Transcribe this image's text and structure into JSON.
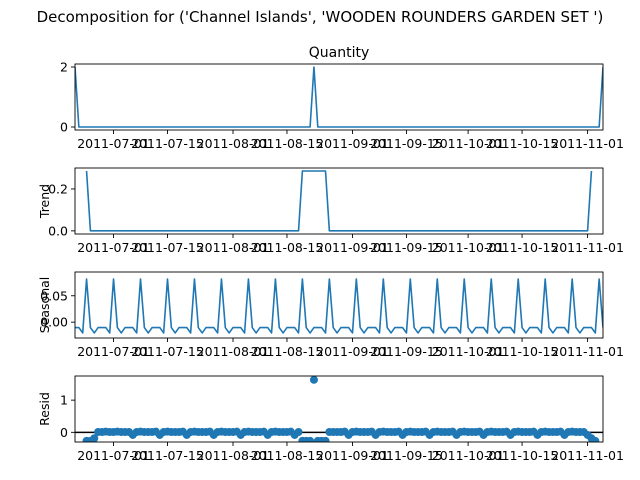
{
  "figure": {
    "suptitle": "Decomposition for ('Channel Islands', 'WOODEN ROUNDERS GARDEN SET ')"
  },
  "colors": {
    "series": "#1f77b4",
    "zero_line": "#000000",
    "axes": "#000000"
  },
  "chart_data": [
    {
      "type": "line",
      "title": "Quantity",
      "ylabel": "",
      "ylim": [
        -0.1,
        2.1
      ],
      "yticks": [
        0,
        2
      ],
      "x_range": [
        "2011-06-21",
        "2011-11-05"
      ],
      "xticks": [
        "2011-07-01",
        "2011-07-15",
        "2011-08-01",
        "2011-08-15",
        "2011-09-01",
        "2011-09-15",
        "2011-10-01",
        "2011-10-15",
        "2011-11-01"
      ],
      "points": [
        [
          "2011-06-21",
          2
        ],
        [
          "2011-06-22",
          0
        ],
        [
          "2011-08-21",
          0
        ],
        [
          "2011-08-22",
          2
        ],
        [
          "2011-08-23",
          0
        ],
        [
          "2011-11-04",
          0
        ],
        [
          "2011-11-05",
          2
        ]
      ]
    },
    {
      "type": "line",
      "title": "",
      "ylabel": "Trend",
      "ylim": [
        -0.015,
        0.3
      ],
      "yticks": [
        0.0,
        0.2
      ],
      "x_range": [
        "2011-06-21",
        "2011-11-05"
      ],
      "xticks": [
        "2011-07-01",
        "2011-07-15",
        "2011-08-01",
        "2011-08-15",
        "2011-09-01",
        "2011-09-15",
        "2011-10-01",
        "2011-10-15",
        "2011-11-01"
      ],
      "points": [
        [
          "2011-06-24",
          0.2857
        ],
        [
          "2011-06-25",
          0
        ],
        [
          "2011-08-18",
          0
        ],
        [
          "2011-08-19",
          0.2857
        ],
        [
          "2011-08-25",
          0.2857
        ],
        [
          "2011-08-26",
          0
        ],
        [
          "2011-11-01",
          0
        ],
        [
          "2011-11-02",
          0.2857
        ]
      ]
    },
    {
      "type": "line",
      "title": "",
      "ylabel": "Seasonal",
      "ylim": [
        -0.03,
        0.095
      ],
      "yticks": [
        0.0,
        0.05
      ],
      "x_range": [
        "2011-06-21",
        "2011-11-05"
      ],
      "xticks": [
        "2011-07-01",
        "2011-07-15",
        "2011-08-01",
        "2011-08-15",
        "2011-09-01",
        "2011-09-15",
        "2011-10-01",
        "2011-10-15",
        "2011-11-01"
      ],
      "pattern": {
        "start": "2011-06-21",
        "period_days": 7,
        "cycle": [
          -0.0102,
          -0.0102,
          -0.0204,
          0.0816,
          -0.0102,
          -0.0204,
          -0.0102
        ]
      }
    },
    {
      "type": "scatter",
      "title": "",
      "ylabel": "Resid",
      "ylim": [
        -0.3,
        1.75
      ],
      "yticks": [
        0,
        1
      ],
      "zero_line": 0,
      "x_range": [
        "2011-06-21",
        "2011-11-05"
      ],
      "xticks": [
        "2011-07-01",
        "2011-07-15",
        "2011-08-01",
        "2011-08-15",
        "2011-09-01",
        "2011-09-15",
        "2011-10-01",
        "2011-10-15",
        "2011-11-01"
      ],
      "points": [
        [
          "2011-06-24",
          -0.2653
        ],
        [
          "2011-06-25",
          -0.2653
        ],
        [
          "2011-06-26",
          -0.1836
        ],
        [
          "2011-06-27",
          0.0102
        ],
        [
          "2011-06-28",
          0.0102
        ],
        [
          "2011-06-29",
          0.0204
        ],
        [
          "2011-06-30",
          0.0102
        ],
        [
          "2011-07-01",
          0.0102
        ],
        [
          "2011-07-02",
          0.0204
        ],
        [
          "2011-07-03",
          0.0102
        ],
        [
          "2011-07-04",
          0.0102
        ],
        [
          "2011-07-05",
          0.0102
        ],
        [
          "2011-07-06",
          -0.0816
        ],
        [
          "2011-07-07",
          0.0102
        ],
        [
          "2011-07-08",
          0.0204
        ],
        [
          "2011-07-09",
          0.0102
        ],
        [
          "2011-07-10",
          0.0102
        ],
        [
          "2011-07-11",
          0.0102
        ],
        [
          "2011-07-12",
          0.0204
        ],
        [
          "2011-07-13",
          -0.0816
        ],
        [
          "2011-07-14",
          0.0102
        ],
        [
          "2011-07-15",
          0.0204
        ],
        [
          "2011-07-16",
          0.0102
        ],
        [
          "2011-07-17",
          0.0102
        ],
        [
          "2011-07-18",
          0.0102
        ],
        [
          "2011-07-19",
          0.0204
        ],
        [
          "2011-07-20",
          -0.0816
        ],
        [
          "2011-07-21",
          0.0102
        ],
        [
          "2011-07-22",
          0.0204
        ],
        [
          "2011-07-23",
          0.0102
        ],
        [
          "2011-07-24",
          0.0102
        ],
        [
          "2011-07-25",
          0.0102
        ],
        [
          "2011-07-26",
          0.0204
        ],
        [
          "2011-07-27",
          -0.0816
        ],
        [
          "2011-07-28",
          0.0102
        ],
        [
          "2011-07-29",
          0.0204
        ],
        [
          "2011-07-30",
          0.0102
        ],
        [
          "2011-07-31",
          0.0102
        ],
        [
          "2011-08-01",
          0.0102
        ],
        [
          "2011-08-02",
          0.0204
        ],
        [
          "2011-08-03",
          -0.0816
        ],
        [
          "2011-08-04",
          0.0102
        ],
        [
          "2011-08-05",
          0.0204
        ],
        [
          "2011-08-06",
          0.0102
        ],
        [
          "2011-08-07",
          0.0102
        ],
        [
          "2011-08-08",
          0.0102
        ],
        [
          "2011-08-09",
          0.0204
        ],
        [
          "2011-08-10",
          -0.0816
        ],
        [
          "2011-08-11",
          0.0102
        ],
        [
          "2011-08-12",
          0.0204
        ],
        [
          "2011-08-13",
          0.0102
        ],
        [
          "2011-08-14",
          0.0102
        ],
        [
          "2011-08-15",
          0.0102
        ],
        [
          "2011-08-16",
          0.0204
        ],
        [
          "2011-08-17",
          -0.0816
        ],
        [
          "2011-08-18",
          0.0102
        ],
        [
          "2011-08-19",
          -0.2653
        ],
        [
          "2011-08-20",
          -0.2653
        ],
        [
          "2011-08-21",
          -0.2653
        ],
        [
          "2011-08-22",
          1.6327
        ],
        [
          "2011-08-23",
          -0.2653
        ],
        [
          "2011-08-24",
          -0.2653
        ],
        [
          "2011-08-25",
          -0.2653
        ],
        [
          "2011-08-26",
          0.0102
        ],
        [
          "2011-08-27",
          0.0102
        ],
        [
          "2011-08-28",
          0.0102
        ],
        [
          "2011-08-29",
          0.0102
        ],
        [
          "2011-08-30",
          0.0204
        ],
        [
          "2011-08-31",
          -0.0816
        ],
        [
          "2011-09-01",
          0.0102
        ],
        [
          "2011-09-02",
          0.0204
        ],
        [
          "2011-09-03",
          0.0102
        ],
        [
          "2011-09-04",
          0.0102
        ],
        [
          "2011-09-05",
          0.0102
        ],
        [
          "2011-09-06",
          0.0204
        ],
        [
          "2011-09-07",
          -0.0816
        ],
        [
          "2011-09-08",
          0.0102
        ],
        [
          "2011-09-09",
          0.0204
        ],
        [
          "2011-09-10",
          0.0102
        ],
        [
          "2011-09-11",
          0.0102
        ],
        [
          "2011-09-12",
          0.0102
        ],
        [
          "2011-09-13",
          0.0204
        ],
        [
          "2011-09-14",
          -0.0816
        ],
        [
          "2011-09-15",
          0.0102
        ],
        [
          "2011-09-16",
          0.0204
        ],
        [
          "2011-09-17",
          0.0102
        ],
        [
          "2011-09-18",
          0.0102
        ],
        [
          "2011-09-19",
          0.0102
        ],
        [
          "2011-09-20",
          0.0204
        ],
        [
          "2011-09-21",
          -0.0816
        ],
        [
          "2011-09-22",
          0.0102
        ],
        [
          "2011-09-23",
          0.0204
        ],
        [
          "2011-09-24",
          0.0102
        ],
        [
          "2011-09-25",
          0.0102
        ],
        [
          "2011-09-26",
          0.0102
        ],
        [
          "2011-09-27",
          0.0204
        ],
        [
          "2011-09-28",
          -0.0816
        ],
        [
          "2011-09-29",
          0.0102
        ],
        [
          "2011-09-30",
          0.0204
        ],
        [
          "2011-10-01",
          0.0102
        ],
        [
          "2011-10-02",
          0.0102
        ],
        [
          "2011-10-03",
          0.0102
        ],
        [
          "2011-10-04",
          0.0204
        ],
        [
          "2011-10-05",
          -0.0816
        ],
        [
          "2011-10-06",
          0.0102
        ],
        [
          "2011-10-07",
          0.0204
        ],
        [
          "2011-10-08",
          0.0102
        ],
        [
          "2011-10-09",
          0.0102
        ],
        [
          "2011-10-10",
          0.0102
        ],
        [
          "2011-10-11",
          0.0204
        ],
        [
          "2011-10-12",
          -0.0816
        ],
        [
          "2011-10-13",
          0.0102
        ],
        [
          "2011-10-14",
          0.0204
        ],
        [
          "2011-10-15",
          0.0102
        ],
        [
          "2011-10-16",
          0.0102
        ],
        [
          "2011-10-17",
          0.0102
        ],
        [
          "2011-10-18",
          0.0204
        ],
        [
          "2011-10-19",
          -0.0816
        ],
        [
          "2011-10-20",
          0.0102
        ],
        [
          "2011-10-21",
          0.0204
        ],
        [
          "2011-10-22",
          0.0102
        ],
        [
          "2011-10-23",
          0.0102
        ],
        [
          "2011-10-24",
          0.0102
        ],
        [
          "2011-10-25",
          0.0204
        ],
        [
          "2011-10-26",
          -0.0816
        ],
        [
          "2011-10-27",
          0.0102
        ],
        [
          "2011-10-28",
          0.0204
        ],
        [
          "2011-10-29",
          0.0102
        ],
        [
          "2011-10-30",
          0.0102
        ],
        [
          "2011-10-31",
          0.0102
        ],
        [
          "2011-11-01",
          -0.0816
        ],
        [
          "2011-11-02",
          -0.1836
        ],
        [
          "2011-11-03",
          -0.2653
        ]
      ]
    }
  ]
}
